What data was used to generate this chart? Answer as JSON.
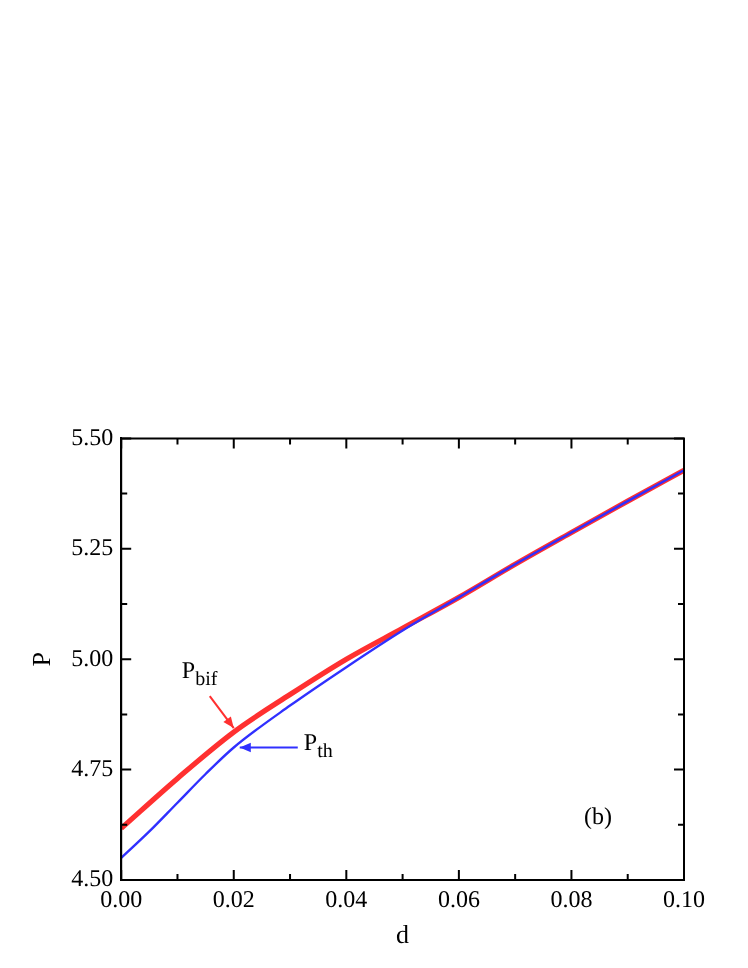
{
  "chart_data": {
    "type": "line",
    "xlabel": "d",
    "ylabel": "P",
    "xlim": [
      0,
      0.1
    ],
    "xticks": [
      {
        "value": 0,
        "label": "0.00"
      },
      {
        "value": 0.02,
        "label": "0.02"
      },
      {
        "value": 0.04,
        "label": "0.04"
      },
      {
        "value": 0.06,
        "label": "0.06"
      },
      {
        "value": 0.08,
        "label": "0.08"
      },
      {
        "value": 0.1,
        "label": "0.10"
      }
    ],
    "ylim": [
      4.5,
      5.5
    ],
    "yticks": [
      {
        "value": 4.5,
        "label": "4.50"
      },
      {
        "value": 4.75,
        "label": "4.75"
      },
      {
        "value": 5,
        "label": "5.00"
      },
      {
        "value": 5.25,
        "label": "5.25"
      },
      {
        "value": 5.5,
        "label": "5.50"
      }
    ],
    "grid": false,
    "marker": "none",
    "line_style": "solid",
    "series": [
      {
        "name": "P$_{bif}$",
        "color": "#ff3030",
        "x": [
          0,
          0.01,
          0.02,
          0.03,
          0.04,
          0.05,
          0.06,
          0.07,
          0.08,
          0.09,
          0.1
        ],
        "values": [
          4.617,
          4.73,
          4.835,
          4.92,
          5.0,
          5.07,
          5.14,
          5.215,
          5.287,
          5.358,
          5.428
        ]
      },
      {
        "name": "P$_{th}$",
        "color": "#3030ff",
        "x": [
          0,
          0.005,
          0.01,
          0.015,
          0.02,
          0.03,
          0.04,
          0.05,
          0.06,
          0.07,
          0.08,
          0.09,
          0.1
        ],
        "values": [
          4.55,
          4.61,
          4.675,
          4.74,
          4.8,
          4.895,
          4.982,
          5.065,
          5.14,
          5.215,
          5.287,
          5.358,
          5.428
        ]
      }
    ],
    "annotations": [
      "(b)"
    ]
  }
}
